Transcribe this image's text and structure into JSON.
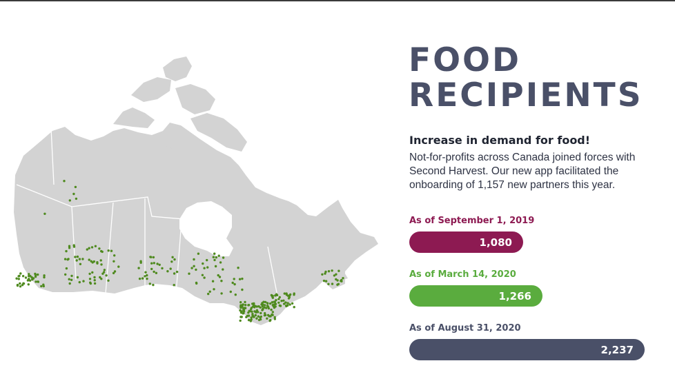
{
  "header": {
    "title_line1": "FOOD",
    "title_line2": "RECIPIENTS"
  },
  "content": {
    "headline": "Increase in demand for food!",
    "body": "Not-for-profits across Canada joined forces with Second Harvest. Our new app facilitated the onboarding of 1,157 new partners this year."
  },
  "map": {
    "map_color": "#d3d3d3",
    "marker_color": "#4f8a1f"
  },
  "chart_data": {
    "type": "bar",
    "orientation": "horizontal",
    "categories": [
      "As of September 1, 2019",
      "As of March 14, 2020",
      "As of August 31, 2020"
    ],
    "values": [
      1080,
      1266,
      2237
    ],
    "value_labels": [
      "1,080",
      "1,266",
      "2,237"
    ],
    "colors": [
      "#8d1a52",
      "#5aac3e",
      "#4a5068"
    ],
    "xlim": [
      0,
      2237
    ]
  }
}
